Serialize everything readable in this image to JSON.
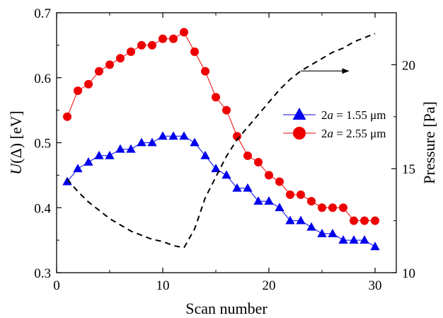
{
  "chart_data": {
    "type": "line",
    "title": "",
    "xlabel": "Scan number",
    "ylabel": {
      "pre": "U",
      "mid": "(Δ) [eV]"
    },
    "y2label": "Pressure [Pa]",
    "xlim": [
      0,
      32
    ],
    "ylim": [
      0.3,
      0.7
    ],
    "y2lim": [
      10,
      22.5
    ],
    "x_ticks": [
      "0",
      "10",
      "20",
      "30"
    ],
    "y_ticks": [
      "0.3",
      "0.4",
      "0.5",
      "0.6",
      "0.7"
    ],
    "y2_ticks": [
      "10",
      "15",
      "20"
    ],
    "legend_position": "right-middle",
    "series": [
      {
        "name": {
          "pre": "2",
          "italic": "a",
          "post": " = 1.55 μm"
        },
        "marker": "triangle",
        "color": "#0000ee",
        "axis": "left",
        "x": [
          1,
          2,
          3,
          4,
          5,
          6,
          7,
          8,
          9,
          10,
          11,
          12,
          13,
          14,
          15,
          16,
          17,
          18,
          19,
          20,
          21,
          22,
          23,
          24,
          25,
          26,
          27,
          28,
          29,
          30
        ],
        "y": [
          0.44,
          0.46,
          0.47,
          0.48,
          0.48,
          0.49,
          0.49,
          0.5,
          0.5,
          0.51,
          0.51,
          0.51,
          0.5,
          0.48,
          0.46,
          0.45,
          0.43,
          0.43,
          0.41,
          0.41,
          0.4,
          0.38,
          0.38,
          0.37,
          0.36,
          0.36,
          0.35,
          0.35,
          0.35,
          0.34
        ]
      },
      {
        "name": {
          "pre": "2",
          "italic": "a",
          "post": " = 2.55 μm"
        },
        "marker": "circle",
        "color": "#ee0000",
        "axis": "left",
        "x": [
          1,
          2,
          3,
          4,
          5,
          6,
          7,
          8,
          9,
          10,
          11,
          12,
          13,
          14,
          15,
          16,
          17,
          18,
          19,
          20,
          21,
          22,
          23,
          24,
          25,
          26,
          27,
          28,
          29,
          30
        ],
        "y": [
          0.54,
          0.58,
          0.59,
          0.61,
          0.62,
          0.63,
          0.64,
          0.65,
          0.65,
          0.66,
          0.66,
          0.67,
          0.64,
          0.61,
          0.57,
          0.55,
          0.51,
          0.48,
          0.47,
          0.45,
          0.44,
          0.42,
          0.42,
          0.41,
          0.4,
          0.4,
          0.4,
          0.38,
          0.38,
          0.38
        ]
      },
      {
        "name": "",
        "style": "dashed",
        "color": "#000000",
        "axis": "right",
        "x": [
          1,
          2,
          3,
          4,
          5,
          6,
          7,
          8,
          9,
          10,
          11,
          12,
          13,
          14,
          15,
          16,
          17,
          18,
          19,
          20,
          21,
          22,
          23,
          24,
          25,
          26,
          27,
          28,
          29,
          30
        ],
        "y": [
          14.5,
          13.9,
          13.4,
          13.0,
          12.6,
          12.3,
          12.0,
          11.8,
          11.6,
          11.5,
          11.3,
          11.2,
          12.1,
          13.6,
          14.6,
          15.6,
          16.4,
          17.0,
          17.6,
          18.2,
          18.8,
          19.3,
          19.7,
          20.0,
          20.3,
          20.6,
          20.8,
          21.1,
          21.3,
          21.5
        ]
      }
    ],
    "annotation": {
      "type": "arrow",
      "from": [
        23,
        19.7
      ],
      "to": [
        27.5,
        19.7
      ],
      "points_to": "right axis"
    }
  }
}
